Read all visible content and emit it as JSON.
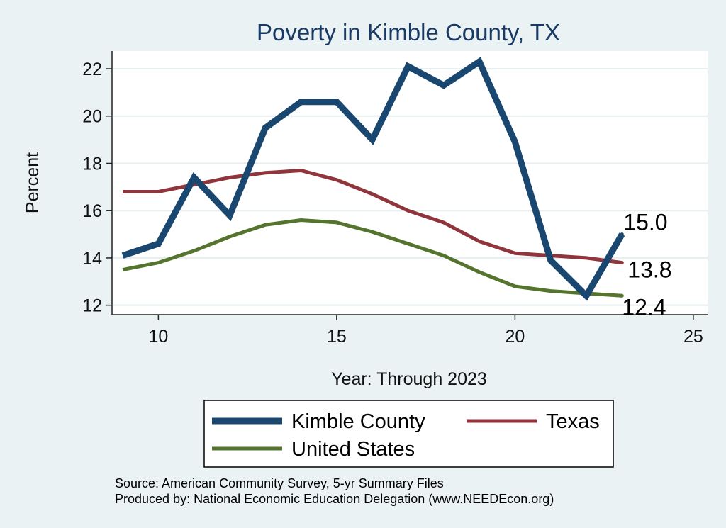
{
  "chart_data": {
    "type": "line",
    "title": "Poverty in Kimble County, TX",
    "xlabel": "Year: Through 2023",
    "ylabel": "Percent",
    "xlim": [
      8.7,
      25.4
    ],
    "ylim": [
      11.6,
      22.75
    ],
    "xticks": [
      10,
      15,
      20,
      25
    ],
    "yticks": [
      12,
      14,
      16,
      18,
      20,
      22
    ],
    "grid": true,
    "series": [
      {
        "name": "Kimble County",
        "color": "#1a476f",
        "x": [
          9,
          10,
          11,
          12,
          13,
          14,
          15,
          16,
          17,
          18,
          19,
          20,
          21,
          22,
          23
        ],
        "values": [
          14.1,
          14.6,
          17.4,
          15.8,
          19.5,
          20.6,
          20.6,
          19.0,
          22.1,
          21.3,
          22.3,
          18.9,
          13.9,
          12.4,
          15.0
        ],
        "end_label": "15.0"
      },
      {
        "name": "Texas",
        "color": "#90353b",
        "x": [
          9,
          10,
          11,
          12,
          13,
          14,
          15,
          16,
          17,
          18,
          19,
          20,
          21,
          22,
          23
        ],
        "values": [
          16.8,
          16.8,
          17.1,
          17.4,
          17.6,
          17.7,
          17.3,
          16.7,
          16.0,
          15.5,
          14.7,
          14.2,
          14.1,
          14.0,
          13.8
        ],
        "end_label": "13.8"
      },
      {
        "name": "United States",
        "color": "#55752f",
        "x": [
          9,
          10,
          11,
          12,
          13,
          14,
          15,
          16,
          17,
          18,
          19,
          20,
          21,
          22,
          23
        ],
        "values": [
          13.5,
          13.8,
          14.3,
          14.9,
          15.4,
          15.6,
          15.5,
          15.1,
          14.6,
          14.1,
          13.4,
          12.8,
          12.6,
          12.5,
          12.4
        ],
        "end_label": "12.4"
      }
    ],
    "legend": {
      "placement": "bottom",
      "items": [
        "Kimble County",
        "Texas",
        "United States"
      ]
    }
  },
  "source": {
    "line1": "Source: American Community Survey, 5-yr Summary Files",
    "line2": "Produced by: National Economic Education Delegation (www.NEEDEcon.org)"
  }
}
